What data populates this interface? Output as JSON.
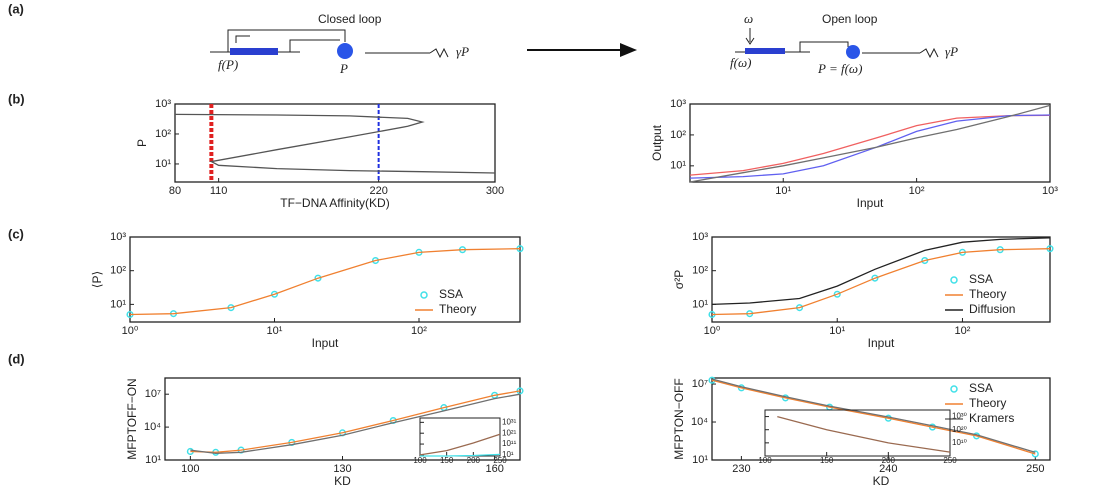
{
  "panel_labels": [
    "(a)",
    "(b)",
    "(c)",
    "(d)"
  ],
  "diagram": {
    "closed_title": "Closed loop",
    "closed_gene": "f(P)",
    "closed_protein": "P",
    "closed_decay": "γP",
    "open_title": "Open loop",
    "open_input": "ω",
    "open_gene": "f(ω)",
    "open_protein": "P = f(ω)",
    "open_decay": "γP"
  },
  "chart_data": [
    {
      "type": "line",
      "ylabel": "P",
      "xlabel": "TF−DNA Affinity(KD)",
      "xlim": [
        80,
        300
      ],
      "xticks": [
        80,
        110,
        220,
        300
      ],
      "ylog": true,
      "ylim": [
        2.5,
        1000
      ],
      "yticks": [
        {
          "value": 10,
          "label": "10¹"
        },
        {
          "value": 100,
          "label": "10²"
        },
        {
          "value": 1000,
          "label": "10³"
        }
      ],
      "x": [
        80,
        150,
        200,
        240,
        250,
        240,
        200,
        150,
        105,
        110,
        150,
        200,
        250,
        300
      ],
      "series": [
        {
          "color": "#555555",
          "values": [
            450,
            430,
            400,
            330,
            250,
            180,
            80,
            30,
            12,
            9,
            7,
            6,
            5.5,
            5
          ]
        }
      ],
      "vlines": [
        {
          "x": 105,
          "color": "#e02020"
        },
        {
          "x": 220,
          "color": "#2030e0"
        }
      ]
    },
    {
      "type": "line",
      "ylabel": "Output",
      "xlabel": "Input",
      "xlog": true,
      "xlim": [
        2,
        1000
      ],
      "xticks": [
        {
          "value": 10,
          "label": "10¹"
        },
        {
          "value": 100,
          "label": "10²"
        },
        {
          "value": 1000,
          "label": "10³"
        }
      ],
      "ylog": true,
      "ylim": [
        3,
        1000
      ],
      "yticks": [
        {
          "value": 10,
          "label": "10¹"
        },
        {
          "value": 100,
          "label": "10²"
        },
        {
          "value": 1000,
          "label": "10³"
        }
      ],
      "x": [
        2,
        5,
        10,
        20,
        50,
        100,
        200,
        500,
        1000
      ],
      "series": [
        {
          "color": "#f06060",
          "values": [
            5,
            7,
            12,
            25,
            80,
            200,
            350,
            420,
            430
          ]
        },
        {
          "color": "#6060f0",
          "values": [
            4,
            4.5,
            5.5,
            10,
            40,
            130,
            280,
            420,
            440
          ]
        },
        {
          "color": "#707070",
          "values": [
            3,
            6,
            10,
            18,
            40,
            80,
            150,
            400,
            900
          ]
        }
      ]
    },
    {
      "type": "line",
      "ylabel": "⟨P⟩",
      "xlabel": "Input",
      "legend": "lower right",
      "xlog": true,
      "xlim": [
        1,
        500
      ],
      "xticks": [
        {
          "value": 1,
          "label": "10⁰"
        },
        {
          "value": 10,
          "label": "10¹"
        },
        {
          "value": 100,
          "label": "10²"
        }
      ],
      "ylog": true,
      "ylim": [
        3,
        1000
      ],
      "yticks": [
        {
          "value": 10,
          "label": "10¹"
        },
        {
          "value": 100,
          "label": "10²"
        },
        {
          "value": 1000,
          "label": "10³"
        }
      ],
      "x": [
        1,
        2,
        5,
        10,
        20,
        50,
        100,
        200,
        500
      ],
      "series": [
        {
          "name": "SSA",
          "color": "#40e0e8",
          "marker": true,
          "values": [
            5,
            5.3,
            8,
            20,
            60,
            200,
            350,
            420,
            450
          ]
        },
        {
          "name": "Theory",
          "color": "#f08030",
          "values": [
            5,
            5.3,
            8,
            20,
            60,
            200,
            350,
            420,
            450
          ]
        }
      ]
    },
    {
      "type": "line",
      "ylabel": "σ²P",
      "xlabel": "Input",
      "legend": "lower right",
      "xlog": true,
      "xlim": [
        1,
        500
      ],
      "xticks": [
        {
          "value": 1,
          "label": "10⁰"
        },
        {
          "value": 10,
          "label": "10¹"
        },
        {
          "value": 100,
          "label": "10²"
        }
      ],
      "ylog": true,
      "ylim": [
        3,
        1000
      ],
      "yticks": [
        {
          "value": 10,
          "label": "10¹"
        },
        {
          "value": 100,
          "label": "10²"
        },
        {
          "value": 1000,
          "label": "10³"
        }
      ],
      "x": [
        1,
        2,
        5,
        10,
        20,
        50,
        100,
        200,
        500
      ],
      "series": [
        {
          "name": "SSA",
          "color": "#40e0e8",
          "marker": true,
          "values": [
            5,
            5.3,
            8,
            20,
            60,
            200,
            350,
            420,
            450
          ]
        },
        {
          "name": "Theory",
          "color": "#f08030",
          "values": [
            5,
            5.3,
            8,
            20,
            60,
            200,
            350,
            420,
            450
          ]
        },
        {
          "name": "Diffusion",
          "color": "#222222",
          "values": [
            10,
            11,
            15,
            35,
            110,
            400,
            700,
            850,
            950
          ]
        }
      ]
    },
    {
      "type": "line",
      "ylabel": "MFPTOFF−ON",
      "xlabel": "KD",
      "xlim": [
        95,
        165
      ],
      "xticks": [
        100,
        130,
        160
      ],
      "ylog": true,
      "ylim": [
        10,
        300000000
      ],
      "yticks": [
        {
          "value": 10,
          "label": "10¹"
        },
        {
          "value": 10000,
          "label": "10⁴"
        },
        {
          "value": 10000000,
          "label": "10⁷"
        }
      ],
      "x": [
        100,
        105,
        110,
        120,
        130,
        140,
        150,
        160,
        165
      ],
      "series": [
        {
          "color": "#40e0e8",
          "marker": true,
          "values": [
            60,
            50,
            80,
            400,
            3000,
            40000,
            600000,
            8000000,
            20000000
          ]
        },
        {
          "color": "#f08030",
          "values": [
            60,
            50,
            80,
            400,
            3000,
            40000,
            600000,
            8000000,
            20000000
          ]
        },
        {
          "color": "#707070",
          "values": [
            80,
            40,
            50,
            250,
            1800,
            25000,
            300000,
            4000000,
            10000000
          ]
        }
      ]
    },
    {
      "type": "line",
      "xlim": [
        100,
        250
      ],
      "xticks": [
        100,
        150,
        200,
        250
      ],
      "ylog": true,
      "ylim": [
        1,
        1e+35
      ],
      "yticks": [
        {
          "value": 10,
          "label": "10¹"
        },
        {
          "value": 100000000000.0,
          "label": "10¹¹"
        },
        {
          "value": 1e+21,
          "label": "10²¹"
        },
        {
          "value": 1e+31,
          "label": "10³¹"
        }
      ],
      "x": [
        100,
        150,
        200,
        250
      ],
      "series": [
        {
          "color": "#9a6a50",
          "values": [
            10,
            100000,
            1000000000000.0,
            1e+20
          ]
        },
        {
          "color": "#40e0e8",
          "values": [
            1,
            1,
            3,
            30
          ]
        }
      ]
    },
    {
      "type": "line",
      "ylabel": "MFPTON−OFF",
      "xlabel": "KD",
      "legend": "upper right",
      "xlim": [
        228,
        251
      ],
      "xticks": [
        230,
        240,
        250
      ],
      "ylog": true,
      "ylim": [
        10,
        30000000
      ],
      "yticks": [
        {
          "value": 10,
          "label": "10¹"
        },
        {
          "value": 10000,
          "label": "10⁴"
        },
        {
          "value": 10000000,
          "label": "10⁷"
        }
      ],
      "x": [
        228,
        230,
        233,
        236,
        240,
        243,
        246,
        250
      ],
      "series": [
        {
          "name": "SSA",
          "color": "#40e0e8",
          "marker": true,
          "values": [
            20000000,
            5000000,
            800000,
            150000,
            20000,
            4000,
            800,
            30
          ]
        },
        {
          "name": "Theory",
          "color": "#f08030",
          "values": [
            20000000,
            5000000,
            800000,
            150000,
            20000,
            4000,
            800,
            30
          ]
        },
        {
          "name": "Kramers",
          "color": "#707070",
          "values": [
            25000000,
            6000000,
            1000000,
            180000,
            25000,
            5000,
            1000,
            40
          ]
        }
      ]
    },
    {
      "type": "line",
      "xlim": [
        100,
        250
      ],
      "xticks": [
        100,
        150,
        200,
        250
      ],
      "ylog": true,
      "ylim": [
        1,
        1e+35
      ],
      "yticks": [
        {
          "value": 10000000000.0,
          "label": "10¹⁰"
        },
        {
          "value": 1e+20,
          "label": "10²⁰"
        },
        {
          "value": 1e+30,
          "label": "10³⁰"
        }
      ],
      "x": [
        110,
        150,
        200,
        250
      ],
      "series": [
        {
          "color": "#9a6a50",
          "values": [
            1e+30,
            1e+20,
            10000000000.0,
            1000
          ]
        }
      ]
    }
  ]
}
